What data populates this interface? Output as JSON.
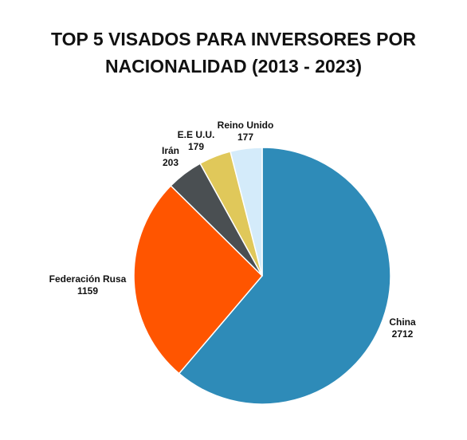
{
  "chart_data": {
    "type": "pie",
    "title_line1": "TOP 5 VISADOS PARA INVERSORES POR",
    "title_line2": "NACIONALIDAD (2013 - 2023)",
    "slices": [
      {
        "label": "China",
        "value": 2712,
        "color": "#2e8bb8"
      },
      {
        "label": "Federación Rusa",
        "value": 1159,
        "color": "#ff5500"
      },
      {
        "label": "Irán",
        "value": 203,
        "color": "#4a4f52"
      },
      {
        "label": "E.E U.U.",
        "value": 179,
        "color": "#e0c85a"
      },
      {
        "label": "Reino Unido",
        "value": 177,
        "color": "#d4ebfa"
      }
    ]
  }
}
